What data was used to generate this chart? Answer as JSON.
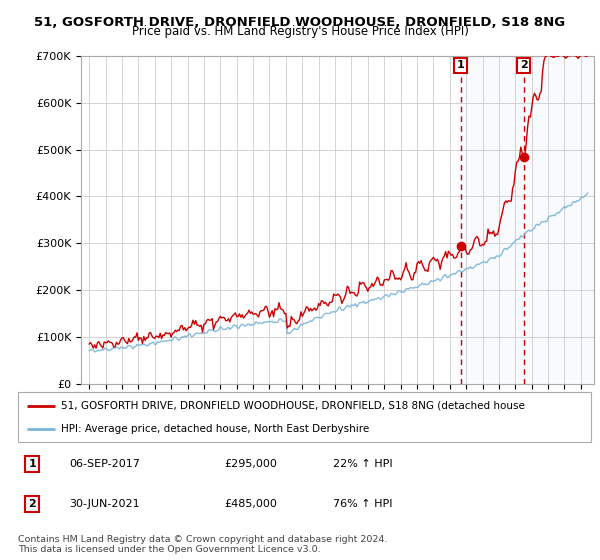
{
  "title_line1": "51, GOSFORTH DRIVE, DRONFIELD WOODHOUSE, DRONFIELD, S18 8NG",
  "title_line2": "Price paid vs. HM Land Registry's House Price Index (HPI)",
  "ylim": [
    0,
    700000
  ],
  "yticks": [
    0,
    100000,
    200000,
    300000,
    400000,
    500000,
    600000,
    700000
  ],
  "ytick_labels": [
    "£0",
    "£100K",
    "£200K",
    "£300K",
    "£400K",
    "£500K",
    "£600K",
    "£700K"
  ],
  "hpi_color": "#7ab4d8",
  "price_color": "#cc0000",
  "sale1_date": 2017.67,
  "sale1_price": 295000,
  "sale2_date": 2021.5,
  "sale2_price": 485000,
  "vline_color": "#cc0000",
  "grid_color": "#cccccc",
  "legend_line1": "51, GOSFORTH DRIVE, DRONFIELD WOODHOUSE, DRONFIELD, S18 8NG (detached house",
  "legend_line2": "HPI: Average price, detached house, North East Derbyshire",
  "table_row1": [
    "1",
    "06-SEP-2017",
    "£295,000",
    "22% ↑ HPI"
  ],
  "table_row2": [
    "2",
    "30-JUN-2021",
    "£485,000",
    "76% ↑ HPI"
  ],
  "footnote": "Contains HM Land Registry data © Crown copyright and database right 2024.\nThis data is licensed under the Open Government Licence v3.0.",
  "highlight_color": "#dde8f5",
  "highlight_start": 2017.5,
  "xlim_left": 1994.5,
  "xlim_right": 2025.8
}
